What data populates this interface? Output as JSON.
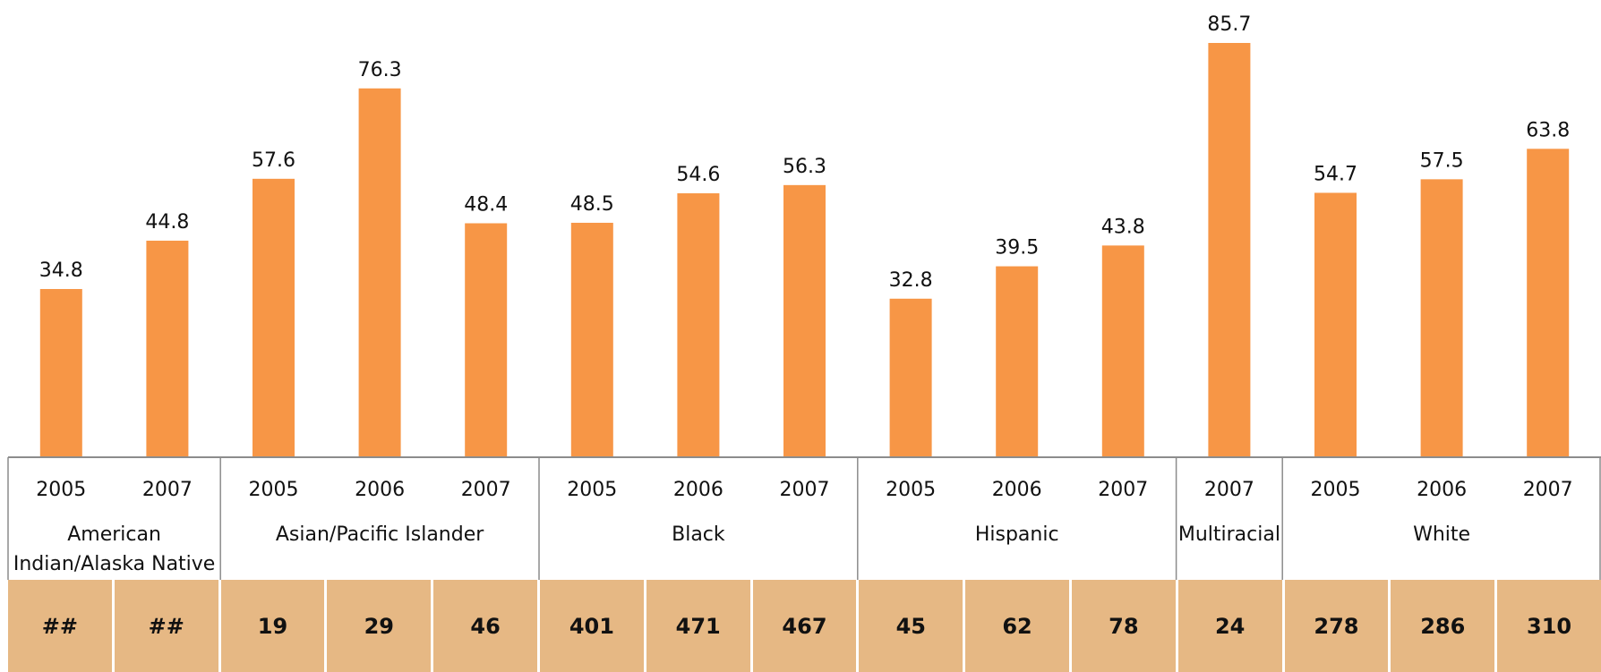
{
  "chart_data": {
    "type": "bar",
    "groups": [
      {
        "name": "American\nIndian/Alaska Native",
        "years": [
          "2005",
          "2007"
        ],
        "values": [
          34.8,
          44.8
        ]
      },
      {
        "name": "Asian/Pacific Islander",
        "years": [
          "2005",
          "2006",
          "2007"
        ],
        "values": [
          57.6,
          76.3,
          48.4
        ]
      },
      {
        "name": "Black",
        "years": [
          "2005",
          "2006",
          "2007"
        ],
        "values": [
          48.5,
          54.6,
          56.3
        ]
      },
      {
        "name": "Hispanic",
        "years": [
          "2005",
          "2006",
          "2007"
        ],
        "values": [
          32.8,
          39.5,
          43.8
        ]
      },
      {
        "name": "Multiracial",
        "years": [
          "2007"
        ],
        "values": [
          85.7
        ]
      },
      {
        "name": "White",
        "years": [
          "2005",
          "2006",
          "2007"
        ],
        "values": [
          54.7,
          57.5,
          63.8
        ]
      }
    ],
    "ylim": [
      0,
      95
    ],
    "bar_color": "#f79646",
    "title": "",
    "xlabel": "",
    "ylabel": ""
  },
  "counts": [
    "##",
    "##",
    "19",
    "29",
    "46",
    "401",
    "471",
    "467",
    "45",
    "62",
    "78",
    "24",
    "278",
    "286",
    "310"
  ],
  "counts_color": "#e6b884"
}
